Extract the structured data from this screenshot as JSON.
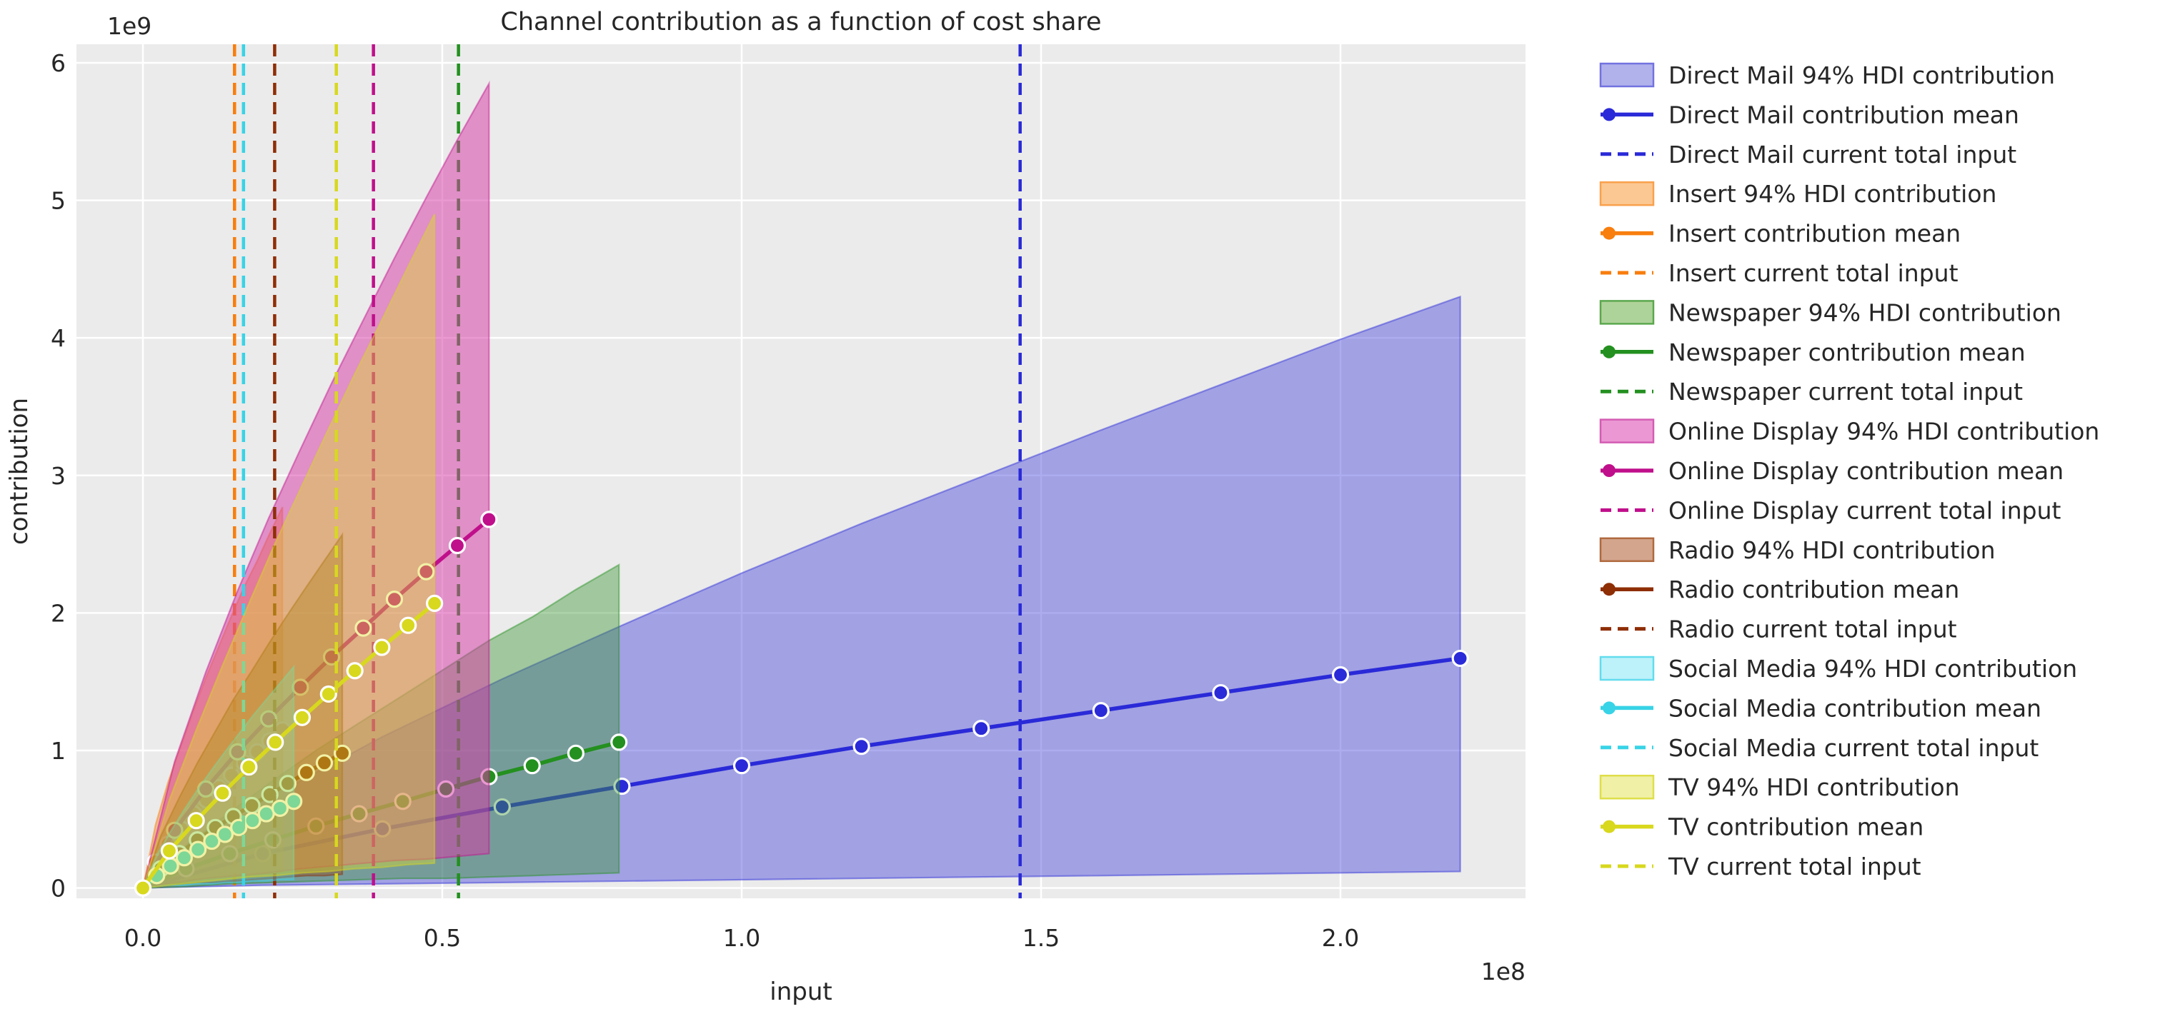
{
  "title": "Channel contribution as a function of cost share",
  "axes": {
    "xlabel": "input",
    "ylabel": "contribution",
    "x_offset_text": "1e8",
    "y_offset_text": "1e9"
  },
  "chart_data": {
    "type": "area",
    "title": "Channel contribution as a function of cost share",
    "xlabel": "input",
    "ylabel": "contribution",
    "x_unit_multiplier": "1e8",
    "y_unit_multiplier": "1e9",
    "xlim": [
      -0.111,
      2.309
    ],
    "ylim": [
      -0.075,
      6.135
    ],
    "x_ticks": [
      "0.0",
      "0.5",
      "1.0",
      "1.5",
      "2.0"
    ],
    "x_tick_values": [
      0.0,
      0.5,
      1.0,
      1.5,
      2.0
    ],
    "y_ticks": [
      "0",
      "1",
      "2",
      "3",
      "4",
      "5",
      "6"
    ],
    "y_tick_values": [
      0,
      1,
      2,
      3,
      4,
      5,
      6
    ],
    "grid": true,
    "legend_position": "right",
    "channels": [
      {
        "name": "Direct Mail",
        "slug": "direct-mail",
        "line_color": "#2a2ad8",
        "fill_color": "rgba(70,70,220,0.45)",
        "patch_fill": "#b1b1ec",
        "patch_border": "#7272e0",
        "current_total_input": 1.465,
        "x": [
          0,
          0.2,
          0.4,
          0.6,
          0.8,
          1.0,
          1.2,
          1.4,
          1.6,
          1.8,
          2.0,
          2.2
        ],
        "mean": [
          0,
          0.25,
          0.43,
          0.59,
          0.74,
          0.89,
          1.03,
          1.16,
          1.29,
          1.42,
          1.55,
          1.67
        ],
        "hdi_upper": [
          0,
          0.63,
          1.1,
          1.52,
          1.91,
          2.29,
          2.65,
          2.99,
          3.33,
          3.66,
          3.99,
          4.3
        ],
        "hdi_lower": [
          0,
          0.02,
          0.03,
          0.04,
          0.05,
          0.06,
          0.07,
          0.08,
          0.09,
          0.1,
          0.11,
          0.12
        ],
        "legend": {
          "hdi": "Direct Mail 94% HDI contribution",
          "mean": "Direct Mail contribution mean",
          "input": "Direct Mail current total input"
        }
      },
      {
        "name": "Insert",
        "slug": "insert",
        "line_color": "#f87e0e",
        "fill_color": "rgba(248,126,14,0.42)",
        "patch_fill": "#fbc893",
        "patch_border": "#f9a14d",
        "current_total_input": 0.153,
        "x": [
          0,
          0.021,
          0.042,
          0.064,
          0.085,
          0.106,
          0.127,
          0.148,
          0.169,
          0.191,
          0.212,
          0.233
        ],
        "mean": [
          0,
          0.19,
          0.32,
          0.43,
          0.54,
          0.64,
          0.73,
          0.82,
          0.91,
          0.99,
          1.07,
          1.15
        ],
        "hdi_upper": [
          0,
          0.46,
          0.77,
          1.04,
          1.3,
          1.54,
          1.76,
          1.98,
          2.19,
          2.38,
          2.58,
          2.77
        ],
        "hdi_lower": [
          0,
          0.02,
          0.03,
          0.04,
          0.06,
          0.07,
          0.08,
          0.09,
          0.09,
          0.1,
          0.11,
          0.12
        ],
        "legend": {
          "hdi": "Insert 94% HDI contribution",
          "mean": "Insert contribution mean",
          "input": "Insert current total input"
        }
      },
      {
        "name": "Newspaper",
        "slug": "newspaper",
        "line_color": "#23901f",
        "fill_color": "rgba(60,150,52,0.42)",
        "patch_fill": "#aed39a",
        "patch_border": "#5ba84e",
        "current_total_input": 0.527,
        "x": [
          0,
          0.072,
          0.145,
          0.217,
          0.289,
          0.361,
          0.434,
          0.506,
          0.578,
          0.65,
          0.723,
          0.795
        ],
        "mean": [
          0,
          0.14,
          0.25,
          0.35,
          0.45,
          0.54,
          0.63,
          0.72,
          0.81,
          0.89,
          0.98,
          1.06
        ],
        "hdi_upper": [
          0,
          0.31,
          0.55,
          0.78,
          1.0,
          1.2,
          1.4,
          1.6,
          1.8,
          1.97,
          2.17,
          2.35
        ],
        "hdi_lower": [
          0,
          0.01,
          0.03,
          0.04,
          0.05,
          0.06,
          0.07,
          0.07,
          0.08,
          0.09,
          0.1,
          0.11
        ],
        "legend": {
          "hdi": "Newspaper 94% HDI contribution",
          "mean": "Newspaper contribution mean",
          "input": "Newspaper current total input"
        }
      },
      {
        "name": "Online Display",
        "slug": "online-display",
        "line_color": "#c00f8b",
        "fill_color": "rgba(214,60,166,0.52)",
        "patch_fill": "#eb97d3",
        "patch_border": "#d45cb3",
        "current_total_input": 0.385,
        "x": [
          0,
          0.053,
          0.105,
          0.158,
          0.21,
          0.263,
          0.315,
          0.368,
          0.42,
          0.473,
          0.525,
          0.578
        ],
        "mean": [
          0,
          0.42,
          0.72,
          0.99,
          1.23,
          1.46,
          1.68,
          1.89,
          2.1,
          2.3,
          2.49,
          2.68
        ],
        "hdi_upper": [
          0,
          0.92,
          1.57,
          2.16,
          2.69,
          3.19,
          3.67,
          4.13,
          4.58,
          5.02,
          5.44,
          5.85
        ],
        "hdi_lower": [
          0,
          0.04,
          0.07,
          0.09,
          0.11,
          0.14,
          0.16,
          0.18,
          0.2,
          0.21,
          0.23,
          0.25
        ],
        "legend": {
          "hdi": "Online Display 94% HDI contribution",
          "mean": "Online Display contribution mean",
          "input": "Online Display current total input"
        }
      },
      {
        "name": "Radio",
        "slug": "radio",
        "line_color": "#8e2e05",
        "fill_color": "rgba(148,74,31,0.45)",
        "patch_fill": "#d3a58c",
        "patch_border": "#b0693f",
        "current_total_input": 0.22,
        "x": [
          0,
          0.03,
          0.061,
          0.091,
          0.121,
          0.151,
          0.182,
          0.212,
          0.242,
          0.273,
          0.303,
          0.333
        ],
        "mean": [
          0,
          0.14,
          0.25,
          0.35,
          0.44,
          0.52,
          0.6,
          0.68,
          0.76,
          0.84,
          0.91,
          0.98
        ],
        "hdi_upper": [
          0,
          0.38,
          0.66,
          0.91,
          1.14,
          1.37,
          1.58,
          1.79,
          1.99,
          2.19,
          2.38,
          2.57
        ],
        "hdi_lower": [
          0,
          0.01,
          0.03,
          0.04,
          0.04,
          0.05,
          0.06,
          0.07,
          0.08,
          0.09,
          0.09,
          0.1
        ],
        "legend": {
          "hdi": "Radio 94% HDI contribution",
          "mean": "Radio contribution mean",
          "input": "Radio current total input"
        }
      },
      {
        "name": "Social Media",
        "slug": "social-media",
        "line_color": "#38d3e6",
        "fill_color": "rgba(80,215,232,0.38)",
        "patch_fill": "#bdf2fa",
        "patch_border": "#62dcee",
        "current_total_input": 0.168,
        "x": [
          0,
          0.023,
          0.046,
          0.069,
          0.092,
          0.115,
          0.137,
          0.16,
          0.183,
          0.206,
          0.229,
          0.252
        ],
        "mean": [
          0,
          0.09,
          0.16,
          0.22,
          0.28,
          0.34,
          0.39,
          0.44,
          0.49,
          0.54,
          0.58,
          0.63
        ],
        "hdi_upper": [
          0,
          0.24,
          0.41,
          0.57,
          0.72,
          0.86,
          0.99,
          1.12,
          1.25,
          1.37,
          1.49,
          1.61
        ],
        "hdi_lower": [
          0,
          0.01,
          0.02,
          0.02,
          0.03,
          0.03,
          0.04,
          0.04,
          0.05,
          0.05,
          0.06,
          0.06
        ],
        "legend": {
          "hdi": "Social Media 94% HDI contribution",
          "mean": "Social Media contribution mean",
          "input": "Social Media current total input"
        }
      },
      {
        "name": "TV",
        "slug": "tv",
        "line_color": "#d8d81e",
        "fill_color": "rgba(222,222,40,0.42)",
        "patch_fill": "#f0f0a6",
        "patch_border": "#dede4a",
        "current_total_input": 0.323,
        "x": [
          0,
          0.044,
          0.089,
          0.133,
          0.177,
          0.221,
          0.266,
          0.31,
          0.354,
          0.399,
          0.443,
          0.487
        ],
        "mean": [
          0,
          0.27,
          0.49,
          0.69,
          0.88,
          1.06,
          1.24,
          1.41,
          1.58,
          1.75,
          1.91,
          2.07
        ],
        "hdi_upper": [
          0,
          0.64,
          1.15,
          1.62,
          2.07,
          2.51,
          2.93,
          3.34,
          3.74,
          4.13,
          4.52,
          4.9
        ],
        "hdi_lower": [
          0,
          0.02,
          0.04,
          0.06,
          0.08,
          0.09,
          0.11,
          0.12,
          0.14,
          0.15,
          0.17,
          0.18
        ],
        "legend": {
          "hdi": "TV 94% HDI contribution",
          "mean": "TV contribution mean",
          "input": "TV current total input"
        }
      }
    ],
    "style": {
      "plot_bg": "#ebebeb",
      "grid_color": "#ffffff",
      "text_color": "#262626",
      "marker_edge": "#ffffff"
    }
  }
}
